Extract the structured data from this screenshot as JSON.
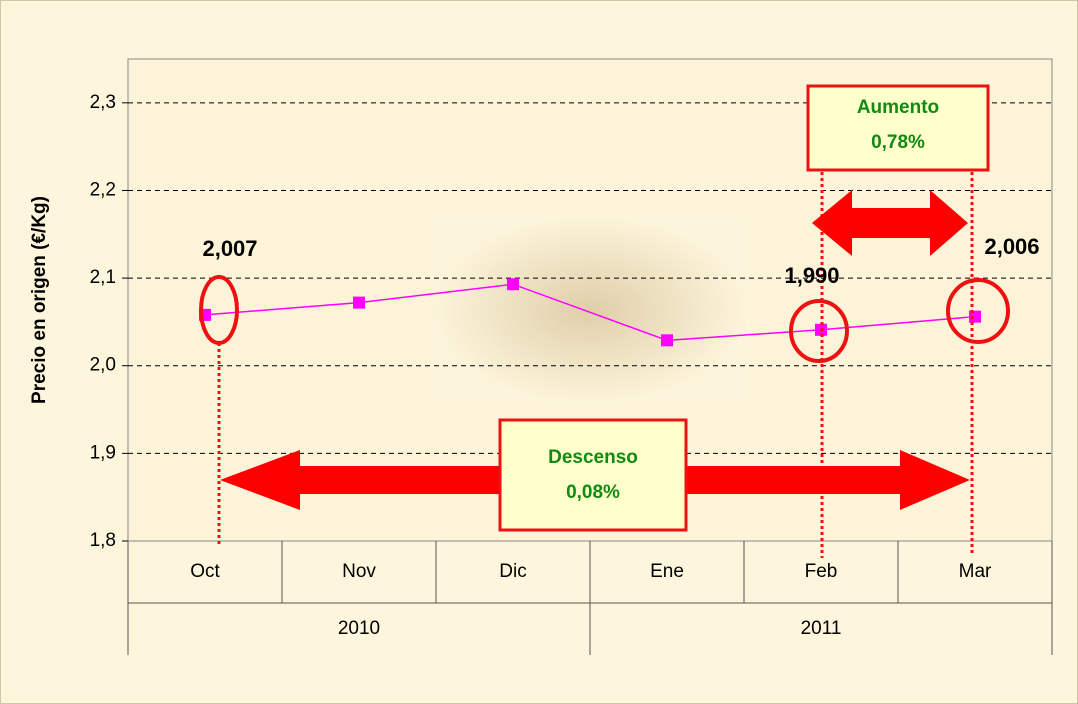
{
  "chart_data": {
    "type": "line",
    "y_label": "Precio en origen (€/Kg)",
    "categories": [
      "Oct",
      "Nov",
      "Dic",
      "Ene",
      "Feb",
      "Mar"
    ],
    "group_categories": [
      "2010",
      "2011"
    ],
    "series": [
      {
        "name": "Precio",
        "color": "#ff00ff",
        "values": [
          2.058,
          2.072,
          2.093,
          2.029,
          2.041,
          2.056
        ]
      }
    ],
    "ylim": [
      1.8,
      2.35
    ],
    "yticks": [
      {
        "value": 1.8,
        "label": "1,8"
      },
      {
        "value": 1.9,
        "label": "1,9"
      },
      {
        "value": 2.0,
        "label": "2,0"
      },
      {
        "value": 2.1,
        "label": "2,1"
      },
      {
        "value": 2.2,
        "label": "2,2"
      },
      {
        "value": 2.3,
        "label": "2,3"
      }
    ],
    "grid": true,
    "annotations": [
      "2,007",
      "1,990",
      "2,006",
      "Aumento",
      "0,78%",
      "Descenso",
      "0,08%"
    ]
  }
}
